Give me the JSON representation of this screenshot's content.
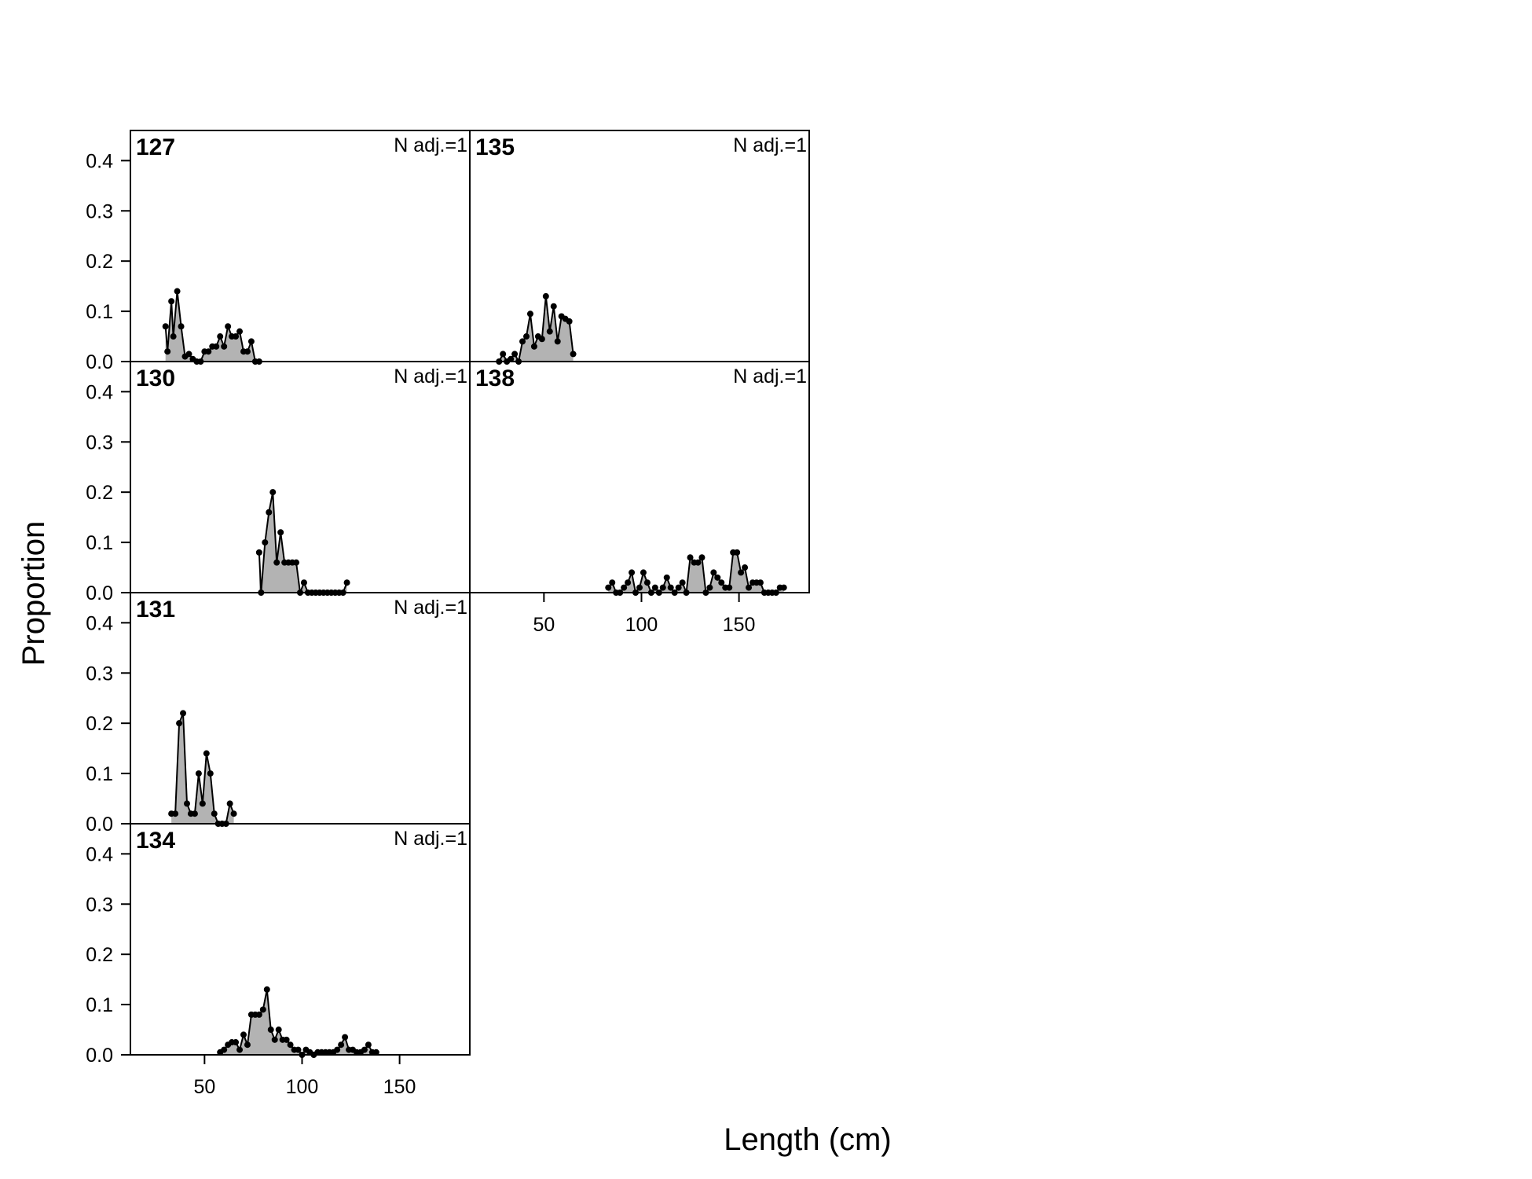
{
  "chart_data": {
    "type": "area",
    "xlabel": "Length (cm)",
    "ylabel": "Proportion",
    "xlim": [
      12,
      186
    ],
    "ylim": [
      0,
      0.46
    ],
    "x_ticks": [
      50,
      100,
      150
    ],
    "y_ticks": [
      0.0,
      0.1,
      0.2,
      0.3,
      0.4
    ],
    "y_tick_labels": [
      "0.0",
      "0.1",
      "0.2",
      "0.3",
      "0.4"
    ],
    "fill_color": "#b3b3b3",
    "line_color": "#000000",
    "panels": [
      {
        "label": "127",
        "note": "N adj.=1",
        "x": [
          30,
          31,
          33,
          34,
          36,
          38,
          40,
          42,
          44,
          46,
          48,
          50,
          52,
          54,
          56,
          58,
          60,
          62,
          64,
          66,
          68,
          70,
          72,
          74,
          76,
          78
        ],
        "y": [
          0.07,
          0.02,
          0.12,
          0.05,
          0.14,
          0.07,
          0.01,
          0.015,
          0.005,
          0.0,
          0.0,
          0.02,
          0.02,
          0.03,
          0.03,
          0.05,
          0.03,
          0.07,
          0.05,
          0.05,
          0.06,
          0.02,
          0.02,
          0.04,
          0.0,
          0.0
        ]
      },
      {
        "label": "130",
        "note": "N adj.=1",
        "x": [
          78,
          79,
          81,
          83,
          85,
          87,
          89,
          91,
          93,
          95,
          97,
          99,
          101,
          103,
          105,
          107,
          109,
          111,
          113,
          115,
          117,
          119,
          121,
          123
        ],
        "y": [
          0.08,
          0.0,
          0.1,
          0.16,
          0.2,
          0.06,
          0.12,
          0.06,
          0.06,
          0.06,
          0.06,
          0.0,
          0.02,
          0.0,
          0.0,
          0.0,
          0.0,
          0.0,
          0.0,
          0.0,
          0.0,
          0.0,
          0.0,
          0.02
        ]
      },
      {
        "label": "131",
        "note": "N adj.=1",
        "x": [
          33,
          35,
          37,
          39,
          41,
          43,
          45,
          47,
          49,
          51,
          53,
          55,
          57,
          59,
          61,
          63,
          65
        ],
        "y": [
          0.02,
          0.02,
          0.2,
          0.22,
          0.04,
          0.02,
          0.02,
          0.1,
          0.04,
          0.14,
          0.1,
          0.02,
          0.0,
          0.0,
          0.0,
          0.04,
          0.02
        ]
      },
      {
        "label": "134",
        "note": "N adj.=1",
        "x": [
          58,
          60,
          62,
          64,
          66,
          68,
          70,
          72,
          74,
          76,
          78,
          80,
          82,
          84,
          86,
          88,
          90,
          92,
          94,
          96,
          98,
          100,
          102,
          104,
          106,
          108,
          110,
          112,
          114,
          116,
          118,
          120,
          122,
          124,
          126,
          128,
          130,
          132,
          134,
          136,
          138
        ],
        "y": [
          0.005,
          0.01,
          0.02,
          0.025,
          0.025,
          0.01,
          0.04,
          0.02,
          0.08,
          0.08,
          0.08,
          0.09,
          0.13,
          0.05,
          0.03,
          0.05,
          0.03,
          0.03,
          0.02,
          0.01,
          0.01,
          0.0,
          0.01,
          0.005,
          0.0,
          0.005,
          0.005,
          0.005,
          0.005,
          0.005,
          0.01,
          0.02,
          0.035,
          0.01,
          0.01,
          0.005,
          0.005,
          0.01,
          0.02,
          0.005,
          0.005
        ]
      },
      {
        "label": "135",
        "note": "N adj.=1",
        "x": [
          27,
          29,
          31,
          33,
          35,
          37,
          39,
          41,
          43,
          45,
          47,
          49,
          51,
          53,
          55,
          57,
          59,
          61,
          63,
          65
        ],
        "y": [
          0.0,
          0.015,
          0.0,
          0.005,
          0.015,
          0.0,
          0.04,
          0.05,
          0.095,
          0.03,
          0.05,
          0.045,
          0.13,
          0.06,
          0.11,
          0.04,
          0.09,
          0.085,
          0.08,
          0.015
        ]
      },
      {
        "label": "138",
        "note": "N adj.=1",
        "x": [
          83,
          85,
          87,
          89,
          91,
          93,
          95,
          97,
          99,
          101,
          103,
          105,
          107,
          109,
          111,
          113,
          115,
          117,
          119,
          121,
          123,
          125,
          127,
          129,
          131,
          133,
          135,
          137,
          139,
          141,
          143,
          145,
          147,
          149,
          151,
          153,
          155,
          157,
          159,
          161,
          163,
          165,
          167,
          169,
          171,
          173
        ],
        "y": [
          0.01,
          0.02,
          0.0,
          0.0,
          0.01,
          0.02,
          0.04,
          0.0,
          0.01,
          0.04,
          0.02,
          0.0,
          0.01,
          0.0,
          0.01,
          0.03,
          0.01,
          0.0,
          0.01,
          0.02,
          0.0,
          0.07,
          0.06,
          0.06,
          0.07,
          0.0,
          0.01,
          0.04,
          0.03,
          0.02,
          0.01,
          0.01,
          0.08,
          0.08,
          0.04,
          0.05,
          0.01,
          0.02,
          0.02,
          0.02,
          0.0,
          0.0,
          0.0,
          0.0,
          0.01,
          0.01
        ]
      }
    ]
  }
}
